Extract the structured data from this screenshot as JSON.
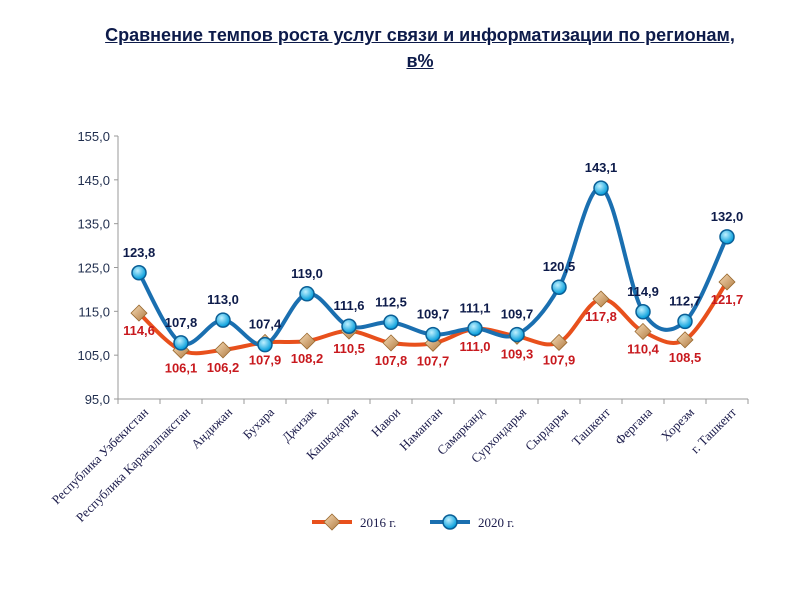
{
  "chart_data": {
    "type": "line",
    "title": "Сравнение темпов роста услуг связи и информатизации по регионам, в%",
    "categories": [
      "Республика Узбекистан",
      "Республика Каракалпакстан",
      "Андижан",
      "Бухара",
      "Джизак",
      "Кашкадарья",
      "Навои",
      "Наманган",
      "Самарканд",
      "Сурхондарья",
      "Сырдарья",
      "Ташкент",
      "Фергана",
      "Хорезм",
      "г. Ташкент"
    ],
    "series": [
      {
        "name": "2016 г.",
        "color": "#e8501c",
        "values": [
          114.6,
          106.1,
          106.2,
          107.9,
          108.2,
          110.5,
          107.8,
          107.7,
          111.0,
          109.3,
          107.9,
          117.8,
          110.4,
          108.5,
          121.7
        ]
      },
      {
        "name": "2020 г.",
        "color": "#1a6fb0",
        "values": [
          123.8,
          107.8,
          113.0,
          107.4,
          119.0,
          111.6,
          112.5,
          109.7,
          111.1,
          109.7,
          120.5,
          143.1,
          114.9,
          112.7,
          132.0
        ]
      }
    ],
    "yticks": [
      "95,0",
      "105,0",
      "115,0",
      "125,0",
      "135,0",
      "145,0",
      "155,0"
    ],
    "ylim": [
      95,
      155
    ],
    "xlabel": "",
    "ylabel": "",
    "grid": false,
    "legend": "bottom"
  }
}
